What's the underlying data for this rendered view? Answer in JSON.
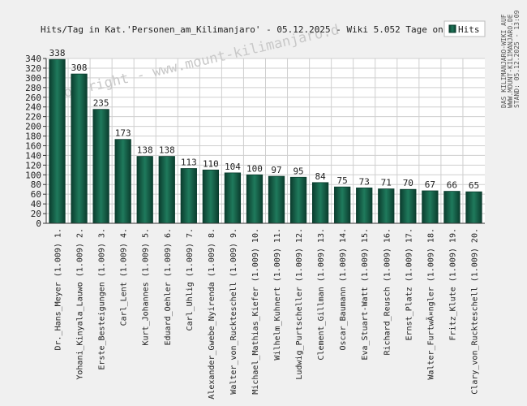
{
  "header": {
    "title": "Hits/Tag in Kat.'Personen_am_Kilimanjaro' - 05.12.2025 - Wiki 5.052 Tage online"
  },
  "watermark": "Copyright - www.mount-kilimanjaro.d",
  "side_note": [
    "DAS KILIMANJARO-WIKI AUF",
    "WWW.MOUNT-KILIMANJARO.DE",
    "STAND: 05.12.2025 - 13:09"
  ],
  "colors": {
    "background": "#f0f0f0",
    "plot_background": "#ffffff",
    "bar_dark": "#0b3d2e",
    "bar_light": "#1f7a5c",
    "grid": "#cfcfcf",
    "text": "#222222",
    "watermark": "#c8c8c8"
  },
  "chart_data": {
    "type": "bar",
    "title": "Hits/Tag in Kat.'Personen_am_Kilimanjaro' - 05.12.2025 - Wiki 5.052 Tage online",
    "xlabel": "",
    "ylabel": "",
    "ylim": [
      0,
      340
    ],
    "ytick_step": 20,
    "grid": true,
    "legend": {
      "position": "top-right",
      "entries": [
        "Hits"
      ]
    },
    "categories": [
      "Dr._Hans_Meyer (1.009) 1.",
      "Yohani_Kinyala_Lauwo (1.009) 2.",
      "Erste_Besteigungen (1.009) 3.",
      "Carl_Lent (1.009) 4.",
      "Kurt_Johannes (1.009) 5.",
      "Eduard_Oehler (1.009) 6.",
      "Carl_Uhlig (1.009) 7.",
      "Alexander_Gwebe_Nyirenda (1.009) 8.",
      "Walter_von_Ruckteschell (1.009) 9.",
      "Michael_Mathias_Kiefer (1.009) 10.",
      "Wilhelm_Kuhnert (1.009) 11.",
      "Ludwig_Purtscheller (1.009) 12.",
      "Clement_Gillman (1.009) 13.",
      "Oscar_Baumann (1.009) 14.",
      "Eva_Stuart-Watt (1.009) 15.",
      "Richard_Reusch (1.009) 16.",
      "Ernst_Platz (1.009) 17.",
      "Walter_FurtwÃ¤ngler (1.009) 18.",
      "Fritz_Klute (1.009) 19.",
      "Clary_von_Ruckteschell (1.009) 20."
    ],
    "series": [
      {
        "name": "Hits",
        "values": [
          338,
          308,
          235,
          173,
          138,
          138,
          113,
          110,
          104,
          100,
          97,
          95,
          84,
          75,
          73,
          71,
          70,
          67,
          66,
          65
        ]
      }
    ]
  }
}
